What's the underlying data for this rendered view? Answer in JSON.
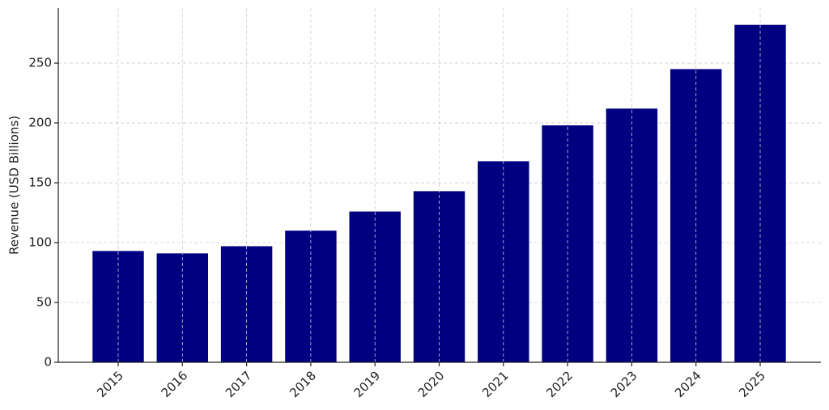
{
  "chart_data": {
    "type": "bar",
    "y_label": "Revenue (USD Billions)",
    "categories": [
      "2015",
      "2016",
      "2017",
      "2018",
      "2019",
      "2020",
      "2021",
      "2022",
      "2023",
      "2024",
      "2025"
    ],
    "values": [
      93,
      91,
      97,
      110,
      126,
      143,
      168,
      198,
      212,
      245,
      282
    ],
    "color": "#000080",
    "ylim": [
      0,
      296
    ],
    "yticks": [
      0,
      50,
      100,
      150,
      200,
      250
    ],
    "grid": true
  }
}
